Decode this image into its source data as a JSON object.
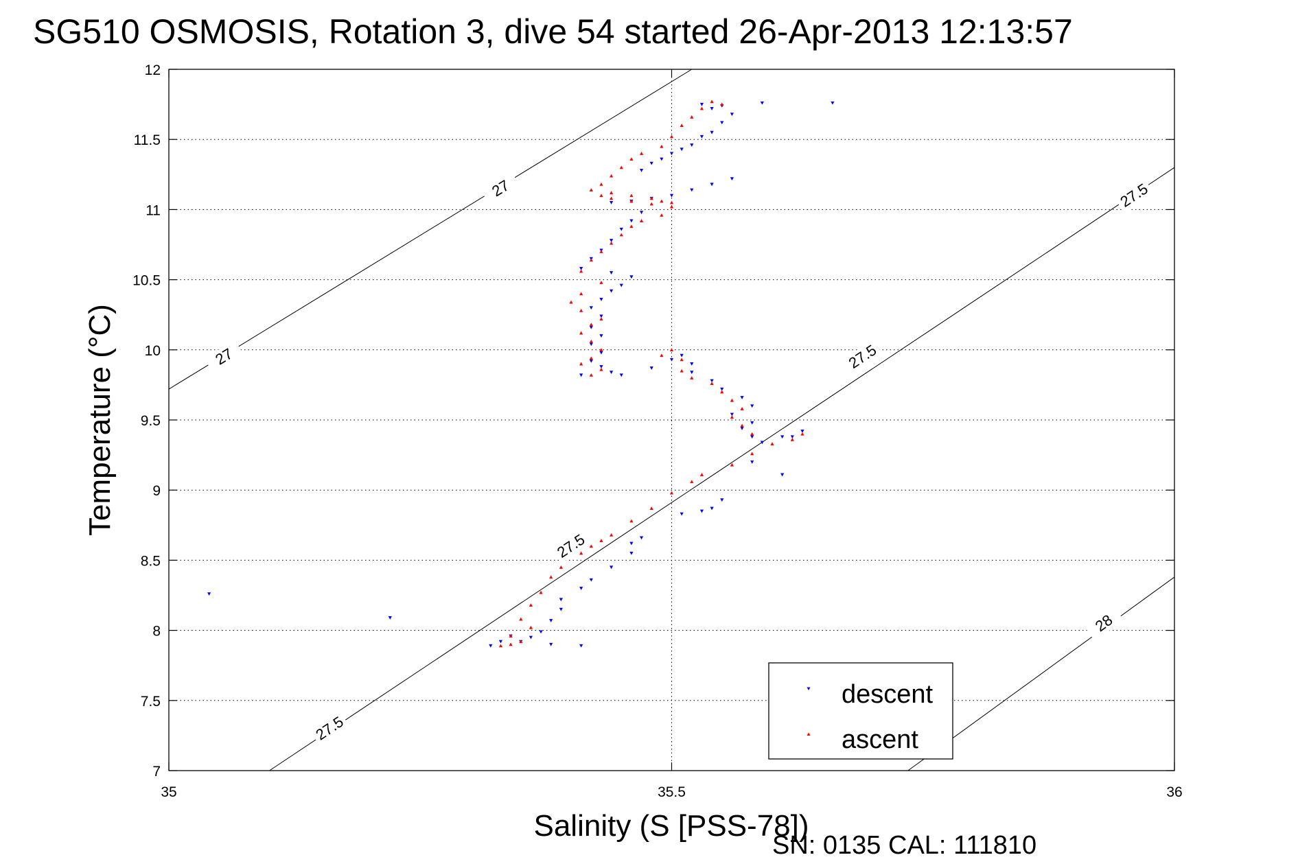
{
  "chart_data": {
    "type": "scatter",
    "title": "SG510 OSMOSIS, Rotation 3, dive 54 started 26-Apr-2013 12:13:57",
    "xlabel": "Salinity (S [PSS-78])",
    "ylabel": "Temperature (°C)",
    "xlim": [
      35,
      36
    ],
    "ylim": [
      7,
      12
    ],
    "x_ticks": [
      "35",
      "35.5",
      "36"
    ],
    "y_ticks": [
      "7",
      "7.5",
      "8",
      "8.5",
      "9",
      "9.5",
      "10",
      "10.5",
      "11",
      "11.5",
      "12"
    ],
    "grid": true,
    "legend_position": "bottom-right",
    "footer": "SN: 0135  CAL: 111810",
    "density_contours": [
      {
        "label": "27",
        "points": [
          [
            35,
            9.72
          ],
          [
            35.52,
            12.0
          ]
        ],
        "label_at": [
          [
            35.055,
            9.95
          ],
          [
            35.33,
            11.15
          ]
        ]
      },
      {
        "label": "27.5",
        "points": [
          [
            35.1,
            7.0
          ],
          [
            36,
            11.3
          ]
        ],
        "label_at": [
          [
            35.16,
            7.3
          ],
          [
            35.4,
            8.6
          ],
          [
            35.69,
            9.95
          ],
          [
            35.96,
            11.1
          ]
        ]
      },
      {
        "label": "28",
        "points": [
          [
            35.735,
            7.0
          ],
          [
            36,
            8.38
          ]
        ],
        "label_at": [
          [
            35.93,
            8.05
          ]
        ]
      }
    ],
    "series": [
      {
        "name": "descent",
        "color": "#0000ff",
        "marker": "triangle-down",
        "points": [
          [
            35.04,
            8.26
          ],
          [
            35.22,
            8.09
          ],
          [
            35.59,
            11.76
          ],
          [
            35.66,
            11.76
          ],
          [
            35.53,
            11.75
          ],
          [
            35.55,
            11.74
          ],
          [
            35.54,
            11.72
          ],
          [
            35.56,
            11.68
          ],
          [
            35.55,
            11.62
          ],
          [
            35.54,
            11.55
          ],
          [
            35.53,
            11.52
          ],
          [
            35.52,
            11.46
          ],
          [
            35.51,
            11.43
          ],
          [
            35.5,
            11.4
          ],
          [
            35.49,
            11.36
          ],
          [
            35.48,
            11.33
          ],
          [
            35.47,
            11.28
          ],
          [
            35.56,
            11.22
          ],
          [
            35.54,
            11.18
          ],
          [
            35.52,
            11.14
          ],
          [
            35.5,
            11.1
          ],
          [
            35.48,
            11.08
          ],
          [
            35.46,
            11.06
          ],
          [
            35.44,
            11.05
          ],
          [
            35.47,
            10.98
          ],
          [
            35.46,
            10.92
          ],
          [
            35.45,
            10.86
          ],
          [
            35.44,
            10.78
          ],
          [
            35.43,
            10.71
          ],
          [
            35.42,
            10.65
          ],
          [
            35.41,
            10.58
          ],
          [
            35.44,
            10.55
          ],
          [
            35.46,
            10.52
          ],
          [
            35.45,
            10.46
          ],
          [
            35.44,
            10.42
          ],
          [
            35.43,
            10.36
          ],
          [
            35.42,
            10.3
          ],
          [
            35.43,
            10.24
          ],
          [
            35.42,
            10.16
          ],
          [
            35.43,
            10.1
          ],
          [
            35.42,
            10.04
          ],
          [
            35.43,
            9.98
          ],
          [
            35.42,
            9.92
          ],
          [
            35.43,
            9.88
          ],
          [
            35.44,
            9.84
          ],
          [
            35.41,
            9.82
          ],
          [
            35.45,
            9.82
          ],
          [
            35.48,
            9.87
          ],
          [
            35.5,
            9.93
          ],
          [
            35.51,
            9.96
          ],
          [
            35.52,
            9.9
          ],
          [
            35.52,
            9.84
          ],
          [
            35.54,
            9.78
          ],
          [
            35.55,
            9.72
          ],
          [
            35.57,
            9.66
          ],
          [
            35.58,
            9.6
          ],
          [
            35.56,
            9.54
          ],
          [
            35.58,
            9.48
          ],
          [
            35.57,
            9.44
          ],
          [
            35.58,
            9.38
          ],
          [
            35.59,
            9.34
          ],
          [
            35.61,
            9.38
          ],
          [
            35.63,
            9.42
          ],
          [
            35.62,
            9.38
          ],
          [
            35.58,
            9.2
          ],
          [
            35.61,
            9.11
          ],
          [
            35.55,
            8.93
          ],
          [
            35.51,
            8.83
          ],
          [
            35.53,
            8.85
          ],
          [
            35.54,
            8.87
          ],
          [
            35.47,
            8.66
          ],
          [
            35.46,
            8.62
          ],
          [
            35.46,
            8.55
          ],
          [
            35.44,
            8.45
          ],
          [
            35.42,
            8.36
          ],
          [
            35.41,
            8.3
          ],
          [
            35.39,
            8.22
          ],
          [
            35.39,
            8.15
          ],
          [
            35.38,
            8.07
          ],
          [
            35.37,
            7.99
          ],
          [
            35.36,
            7.95
          ],
          [
            35.35,
            7.92
          ],
          [
            35.34,
            7.96
          ],
          [
            35.33,
            7.92
          ],
          [
            35.38,
            7.9
          ],
          [
            35.41,
            7.89
          ],
          [
            35.32,
            7.89
          ]
        ]
      },
      {
        "name": "ascent",
        "color": "#ff0000",
        "marker": "triangle-up",
        "points": [
          [
            35.54,
            11.77
          ],
          [
            35.55,
            11.75
          ],
          [
            35.53,
            11.72
          ],
          [
            35.52,
            11.66
          ],
          [
            35.51,
            11.6
          ],
          [
            35.5,
            11.52
          ],
          [
            35.49,
            11.45
          ],
          [
            35.47,
            11.4
          ],
          [
            35.46,
            11.36
          ],
          [
            35.45,
            11.3
          ],
          [
            35.44,
            11.24
          ],
          [
            35.43,
            11.18
          ],
          [
            35.42,
            11.14
          ],
          [
            35.44,
            11.12
          ],
          [
            35.46,
            11.1
          ],
          [
            35.48,
            11.08
          ],
          [
            35.49,
            11.06
          ],
          [
            35.5,
            11.05
          ],
          [
            35.5,
            11.02
          ],
          [
            35.48,
            11.04
          ],
          [
            35.46,
            11.06
          ],
          [
            35.44,
            11.08
          ],
          [
            35.43,
            11.1
          ],
          [
            35.49,
            10.96
          ],
          [
            35.47,
            10.92
          ],
          [
            35.46,
            10.88
          ],
          [
            35.45,
            10.82
          ],
          [
            35.44,
            10.76
          ],
          [
            35.43,
            10.7
          ],
          [
            35.42,
            10.64
          ],
          [
            35.41,
            10.56
          ],
          [
            35.43,
            10.48
          ],
          [
            35.41,
            10.4
          ],
          [
            35.4,
            10.34
          ],
          [
            35.41,
            10.28
          ],
          [
            35.43,
            10.22
          ],
          [
            35.42,
            10.18
          ],
          [
            35.41,
            10.12
          ],
          [
            35.42,
            10.06
          ],
          [
            35.43,
            10.0
          ],
          [
            35.42,
            9.94
          ],
          [
            35.41,
            9.9
          ],
          [
            35.43,
            9.86
          ],
          [
            35.42,
            9.82
          ],
          [
            35.49,
            9.96
          ],
          [
            35.5,
            10.0
          ],
          [
            35.51,
            9.93
          ],
          [
            35.51,
            9.85
          ],
          [
            35.52,
            9.8
          ],
          [
            35.54,
            9.76
          ],
          [
            35.55,
            9.7
          ],
          [
            35.56,
            9.64
          ],
          [
            35.57,
            9.58
          ],
          [
            35.56,
            9.52
          ],
          [
            35.57,
            9.46
          ],
          [
            35.58,
            9.4
          ],
          [
            35.6,
            9.33
          ],
          [
            35.62,
            9.36
          ],
          [
            35.63,
            9.4
          ],
          [
            35.58,
            9.26
          ],
          [
            35.56,
            9.18
          ],
          [
            35.53,
            9.11
          ],
          [
            35.52,
            9.06
          ],
          [
            35.5,
            8.98
          ],
          [
            35.48,
            8.87
          ],
          [
            35.46,
            8.78
          ],
          [
            35.44,
            8.68
          ],
          [
            35.42,
            8.6
          ],
          [
            35.43,
            8.64
          ],
          [
            35.41,
            8.55
          ],
          [
            35.39,
            8.45
          ],
          [
            35.38,
            8.38
          ],
          [
            35.37,
            8.27
          ],
          [
            35.36,
            8.18
          ],
          [
            35.35,
            8.08
          ],
          [
            35.36,
            8.02
          ],
          [
            35.34,
            7.96
          ],
          [
            35.35,
            7.92
          ],
          [
            35.34,
            7.9
          ],
          [
            35.33,
            7.89
          ]
        ]
      }
    ]
  }
}
